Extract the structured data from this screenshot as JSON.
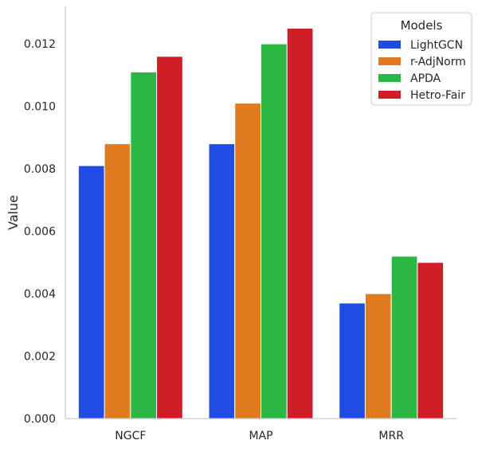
{
  "chart_data": {
    "type": "bar",
    "title": "",
    "xlabel": "",
    "ylabel": "Value",
    "categories": [
      "NGCF",
      "MAP",
      "MRR"
    ],
    "series": [
      {
        "name": "LightGCN",
        "color": "#1f4de3",
        "values": [
          0.0081,
          0.0088,
          0.0037
        ]
      },
      {
        "name": "r-AdjNorm",
        "color": "#e07b1f",
        "values": [
          0.0088,
          0.0101,
          0.004
        ]
      },
      {
        "name": "APDA",
        "color": "#2cb644",
        "values": [
          0.0111,
          0.012,
          0.0052
        ]
      },
      {
        "name": "Hetro-Fair",
        "color": "#cf1e27",
        "values": [
          0.0116,
          0.0125,
          0.005
        ]
      }
    ],
    "ylim": [
      0,
      0.0132
    ],
    "yticks": [
      "0.000",
      "0.002",
      "0.004",
      "0.006",
      "0.008",
      "0.010",
      "0.012"
    ],
    "grid": false,
    "legend": {
      "title": "Models",
      "position": "top-right"
    }
  }
}
